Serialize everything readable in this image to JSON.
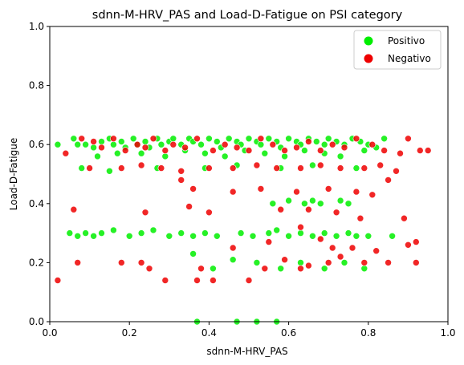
{
  "chart_data": {
    "type": "scatter",
    "title": "sdnn-M-HRV_PAS and Load-D-Fatigue on PSI category",
    "xlabel": "sdnn-M-HRV_PAS",
    "ylabel": "Load-D-Fatigue",
    "xlim": [
      0,
      1
    ],
    "ylim": [
      0,
      1
    ],
    "x_ticks": [
      "0.0",
      "0.2",
      "0.4",
      "0.6",
      "0.8",
      "1.0"
    ],
    "y_ticks": [
      "0.0",
      "0.2",
      "0.4",
      "0.6",
      "0.8",
      "1.0"
    ],
    "grid": false,
    "legend": {
      "placement": "top-right",
      "entries": [
        "Positivo",
        "Negativo"
      ]
    },
    "series": [
      {
        "name": "Positivo",
        "color": "#00ee00",
        "points": [
          [
            0.02,
            0.6
          ],
          [
            0.06,
            0.62
          ],
          [
            0.07,
            0.6
          ],
          [
            0.09,
            0.6
          ],
          [
            0.11,
            0.59
          ],
          [
            0.13,
            0.61
          ],
          [
            0.15,
            0.62
          ],
          [
            0.16,
            0.6
          ],
          [
            0.18,
            0.61
          ],
          [
            0.19,
            0.59
          ],
          [
            0.21,
            0.62
          ],
          [
            0.22,
            0.6
          ],
          [
            0.24,
            0.61
          ],
          [
            0.25,
            0.59
          ],
          [
            0.27,
            0.62
          ],
          [
            0.28,
            0.6
          ],
          [
            0.3,
            0.61
          ],
          [
            0.31,
            0.62
          ],
          [
            0.33,
            0.6
          ],
          [
            0.35,
            0.62
          ],
          [
            0.36,
            0.61
          ],
          [
            0.38,
            0.6
          ],
          [
            0.4,
            0.62
          ],
          [
            0.42,
            0.61
          ],
          [
            0.43,
            0.59
          ],
          [
            0.45,
            0.62
          ],
          [
            0.47,
            0.61
          ],
          [
            0.48,
            0.6
          ],
          [
            0.5,
            0.62
          ],
          [
            0.52,
            0.61
          ],
          [
            0.53,
            0.6
          ],
          [
            0.55,
            0.62
          ],
          [
            0.57,
            0.61
          ],
          [
            0.58,
            0.59
          ],
          [
            0.6,
            0.62
          ],
          [
            0.62,
            0.61
          ],
          [
            0.63,
            0.6
          ],
          [
            0.65,
            0.62
          ],
          [
            0.67,
            0.61
          ],
          [
            0.69,
            0.6
          ],
          [
            0.7,
            0.62
          ],
          [
            0.72,
            0.61
          ],
          [
            0.74,
            0.6
          ],
          [
            0.76,
            0.62
          ],
          [
            0.78,
            0.61
          ],
          [
            0.8,
            0.6
          ],
          [
            0.82,
            0.59
          ],
          [
            0.84,
            0.62
          ],
          [
            0.12,
            0.56
          ],
          [
            0.17,
            0.57
          ],
          [
            0.23,
            0.57
          ],
          [
            0.29,
            0.56
          ],
          [
            0.34,
            0.58
          ],
          [
            0.39,
            0.57
          ],
          [
            0.44,
            0.56
          ],
          [
            0.49,
            0.58
          ],
          [
            0.54,
            0.57
          ],
          [
            0.59,
            0.56
          ],
          [
            0.64,
            0.58
          ],
          [
            0.69,
            0.57
          ],
          [
            0.73,
            0.56
          ],
          [
            0.79,
            0.58
          ],
          [
            0.08,
            0.52
          ],
          [
            0.15,
            0.51
          ],
          [
            0.27,
            0.52
          ],
          [
            0.39,
            0.52
          ],
          [
            0.47,
            0.53
          ],
          [
            0.58,
            0.52
          ],
          [
            0.66,
            0.53
          ],
          [
            0.77,
            0.52
          ],
          [
            0.56,
            0.4
          ],
          [
            0.6,
            0.41
          ],
          [
            0.64,
            0.4
          ],
          [
            0.66,
            0.41
          ],
          [
            0.68,
            0.4
          ],
          [
            0.73,
            0.41
          ],
          [
            0.75,
            0.4
          ],
          [
            0.05,
            0.3
          ],
          [
            0.07,
            0.29
          ],
          [
            0.09,
            0.3
          ],
          [
            0.11,
            0.29
          ],
          [
            0.13,
            0.3
          ],
          [
            0.16,
            0.31
          ],
          [
            0.2,
            0.29
          ],
          [
            0.23,
            0.3
          ],
          [
            0.26,
            0.31
          ],
          [
            0.3,
            0.29
          ],
          [
            0.33,
            0.3
          ],
          [
            0.36,
            0.29
          ],
          [
            0.39,
            0.3
          ],
          [
            0.42,
            0.29
          ],
          [
            0.48,
            0.3
          ],
          [
            0.51,
            0.29
          ],
          [
            0.55,
            0.3
          ],
          [
            0.57,
            0.31
          ],
          [
            0.6,
            0.29
          ],
          [
            0.63,
            0.3
          ],
          [
            0.66,
            0.29
          ],
          [
            0.69,
            0.3
          ],
          [
            0.72,
            0.29
          ],
          [
            0.75,
            0.3
          ],
          [
            0.77,
            0.29
          ],
          [
            0.8,
            0.29
          ],
          [
            0.86,
            0.29
          ],
          [
            0.36,
            0.23
          ],
          [
            0.41,
            0.18
          ],
          [
            0.46,
            0.21
          ],
          [
            0.52,
            0.2
          ],
          [
            0.58,
            0.18
          ],
          [
            0.63,
            0.2
          ],
          [
            0.69,
            0.18
          ],
          [
            0.74,
            0.2
          ],
          [
            0.79,
            0.18
          ],
          [
            0.37,
            0.0
          ],
          [
            0.47,
            0.0
          ],
          [
            0.52,
            0.0
          ],
          [
            0.57,
            0.0
          ]
        ]
      },
      {
        "name": "Negativo",
        "color": "#ee0000",
        "points": [
          [
            0.04,
            0.57
          ],
          [
            0.08,
            0.62
          ],
          [
            0.11,
            0.61
          ],
          [
            0.13,
            0.59
          ],
          [
            0.16,
            0.62
          ],
          [
            0.19,
            0.58
          ],
          [
            0.22,
            0.6
          ],
          [
            0.24,
            0.59
          ],
          [
            0.26,
            0.62
          ],
          [
            0.29,
            0.58
          ],
          [
            0.31,
            0.6
          ],
          [
            0.34,
            0.59
          ],
          [
            0.37,
            0.62
          ],
          [
            0.41,
            0.58
          ],
          [
            0.44,
            0.6
          ],
          [
            0.47,
            0.59
          ],
          [
            0.5,
            0.58
          ],
          [
            0.53,
            0.62
          ],
          [
            0.56,
            0.6
          ],
          [
            0.59,
            0.58
          ],
          [
            0.62,
            0.59
          ],
          [
            0.65,
            0.61
          ],
          [
            0.68,
            0.58
          ],
          [
            0.71,
            0.6
          ],
          [
            0.74,
            0.59
          ],
          [
            0.77,
            0.62
          ],
          [
            0.81,
            0.6
          ],
          [
            0.84,
            0.58
          ],
          [
            0.88,
            0.57
          ],
          [
            0.9,
            0.62
          ],
          [
            0.93,
            0.58
          ],
          [
            0.95,
            0.58
          ],
          [
            0.1,
            0.52
          ],
          [
            0.18,
            0.52
          ],
          [
            0.23,
            0.53
          ],
          [
            0.28,
            0.52
          ],
          [
            0.33,
            0.51
          ],
          [
            0.4,
            0.52
          ],
          [
            0.46,
            0.52
          ],
          [
            0.52,
            0.53
          ],
          [
            0.57,
            0.52
          ],
          [
            0.63,
            0.52
          ],
          [
            0.68,
            0.53
          ],
          [
            0.73,
            0.52
          ],
          [
            0.79,
            0.52
          ],
          [
            0.83,
            0.53
          ],
          [
            0.87,
            0.51
          ],
          [
            0.85,
            0.48
          ],
          [
            0.33,
            0.48
          ],
          [
            0.36,
            0.45
          ],
          [
            0.46,
            0.44
          ],
          [
            0.53,
            0.45
          ],
          [
            0.62,
            0.44
          ],
          [
            0.7,
            0.45
          ],
          [
            0.77,
            0.44
          ],
          [
            0.81,
            0.43
          ],
          [
            0.06,
            0.38
          ],
          [
            0.24,
            0.37
          ],
          [
            0.35,
            0.39
          ],
          [
            0.4,
            0.37
          ],
          [
            0.58,
            0.38
          ],
          [
            0.65,
            0.38
          ],
          [
            0.72,
            0.37
          ],
          [
            0.78,
            0.35
          ],
          [
            0.89,
            0.35
          ],
          [
            0.55,
            0.27
          ],
          [
            0.63,
            0.32
          ],
          [
            0.68,
            0.28
          ],
          [
            0.71,
            0.25
          ],
          [
            0.76,
            0.25
          ],
          [
            0.82,
            0.24
          ],
          [
            0.9,
            0.26
          ],
          [
            0.92,
            0.27
          ],
          [
            0.02,
            0.14
          ],
          [
            0.07,
            0.2
          ],
          [
            0.18,
            0.2
          ],
          [
            0.23,
            0.2
          ],
          [
            0.25,
            0.18
          ],
          [
            0.29,
            0.14
          ],
          [
            0.37,
            0.14
          ],
          [
            0.38,
            0.18
          ],
          [
            0.41,
            0.14
          ],
          [
            0.46,
            0.25
          ],
          [
            0.5,
            0.14
          ],
          [
            0.54,
            0.18
          ],
          [
            0.59,
            0.21
          ],
          [
            0.63,
            0.18
          ],
          [
            0.65,
            0.19
          ],
          [
            0.7,
            0.2
          ],
          [
            0.73,
            0.22
          ],
          [
            0.79,
            0.2
          ],
          [
            0.85,
            0.2
          ],
          [
            0.92,
            0.2
          ]
        ]
      }
    ]
  }
}
